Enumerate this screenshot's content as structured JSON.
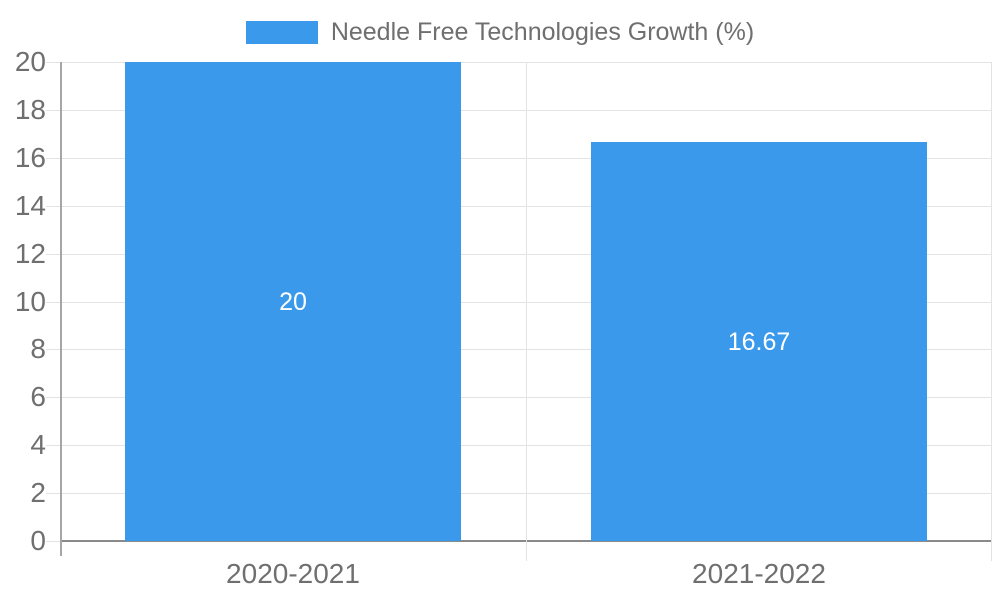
{
  "legend": {
    "label": "Needle Free Technologies Growth (%)"
  },
  "chart_data": {
    "type": "bar",
    "title": "Needle Free Technologies Growth (%)",
    "series_name": "Needle Free Technologies Growth (%)",
    "categories": [
      "2020-2021",
      "2021-2022"
    ],
    "values": [
      20,
      16.67
    ],
    "bar_labels": [
      "20",
      "16.67"
    ],
    "xlabel": "",
    "ylabel": "",
    "ylim": [
      0,
      20
    ],
    "ytick_step": 2,
    "ytick_labels": [
      "0",
      "2",
      "4",
      "6",
      "8",
      "10",
      "12",
      "14",
      "16",
      "18",
      "20"
    ],
    "grid": true,
    "legend_position": "top"
  },
  "colors": {
    "bar": "#3b99ec",
    "grid": "#e3e3e3",
    "axis_line": "#a6a6a6",
    "baseline": "#8a8a8a",
    "text": "#6f6f6f",
    "bar_label": "#ffffff",
    "background": "#ffffff"
  }
}
